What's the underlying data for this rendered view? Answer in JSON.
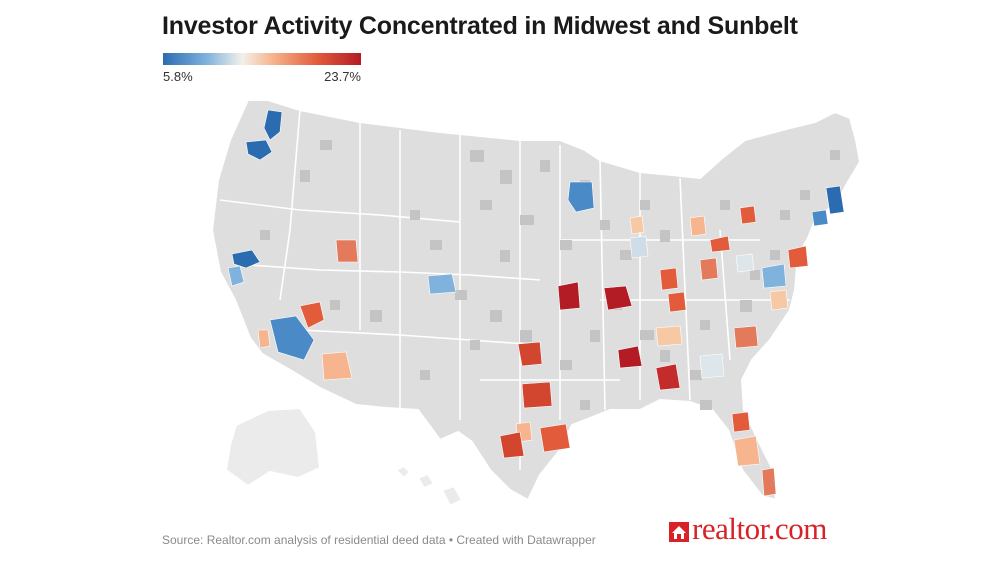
{
  "title": "Investor Activity Concentrated in Midwest and Sunbelt",
  "legend": {
    "min_label": "5.8%",
    "max_label": "23.7%",
    "min_value": 5.8,
    "max_value": 23.7,
    "colors": [
      "#2b6cb0",
      "#7fb2dc",
      "#f3f0ea",
      "#f6b58f",
      "#e25b3b",
      "#b31b25"
    ]
  },
  "map": {
    "region": "Contiguous United States, Alaska and Hawaii (county level)",
    "highlighted_metros": [
      {
        "area": "Seattle, WA",
        "color": "#2b6cb0"
      },
      {
        "area": "Portland, OR",
        "color": "#2b6cb0"
      },
      {
        "area": "San Francisco, CA",
        "color": "#2b6cb0"
      },
      {
        "area": "San Jose, CA",
        "color": "#7fb2dc"
      },
      {
        "area": "Los Angeles / Riverside, CA",
        "color": "#4a8ac6"
      },
      {
        "area": "San Diego, CA",
        "color": "#f6b58f"
      },
      {
        "area": "Las Vegas, NV",
        "color": "#e25b3b"
      },
      {
        "area": "Phoenix, AZ",
        "color": "#f6b58f"
      },
      {
        "area": "Salt Lake City, UT",
        "color": "#e27a5b"
      },
      {
        "area": "Denver, CO",
        "color": "#7fb2dc"
      },
      {
        "area": "Minneapolis, MN",
        "color": "#4a8ac6"
      },
      {
        "area": "Kansas City, MO",
        "color": "#b31b25"
      },
      {
        "area": "St. Louis, MO",
        "color": "#b31b25"
      },
      {
        "area": "Oklahoma City, OK",
        "color": "#d2452f"
      },
      {
        "area": "Dallas, TX",
        "color": "#d2452f"
      },
      {
        "area": "Houston, TX",
        "color": "#e25b3b"
      },
      {
        "area": "San Antonio, TX",
        "color": "#d2452f"
      },
      {
        "area": "Austin, TX",
        "color": "#f6b58f"
      },
      {
        "area": "Memphis, TN",
        "color": "#b31b25"
      },
      {
        "area": "Birmingham, AL",
        "color": "#c42b2b"
      },
      {
        "area": "Nashville, TN",
        "color": "#f6c8a4"
      },
      {
        "area": "Atlanta, GA",
        "color": "#dde6ea"
      },
      {
        "area": "Indianapolis, IN",
        "color": "#e25b3b"
      },
      {
        "area": "Cincinnati, OH",
        "color": "#e25b3b"
      },
      {
        "area": "Columbus, OH",
        "color": "#e27a5b"
      },
      {
        "area": "Detroit, MI",
        "color": "#f6b58f"
      },
      {
        "area": "Cleveland, OH",
        "color": "#e25b3b"
      },
      {
        "area": "Milwaukee, WI",
        "color": "#f6c8a4"
      },
      {
        "area": "Chicago, IL",
        "color": "#cfdde8"
      },
      {
        "area": "Pittsburgh, PA",
        "color": "#dde6ea"
      },
      {
        "area": "Philadelphia, PA",
        "color": "#e25b3b"
      },
      {
        "area": "Baltimore / Washington",
        "color": "#7fb2dc"
      },
      {
        "area": "Richmond, VA",
        "color": "#f6c8a4"
      },
      {
        "area": "Charlotte, NC",
        "color": "#e27a5b"
      },
      {
        "area": "Boston, MA",
        "color": "#2b6cb0"
      },
      {
        "area": "Hartford / Providence",
        "color": "#4a8ac6"
      },
      {
        "area": "Albany / Upstate NY",
        "color": "#e25b3b"
      },
      {
        "area": "Jacksonville, FL",
        "color": "#e25b3b"
      },
      {
        "area": "Orlando / Tampa, FL",
        "color": "#f6b58f"
      },
      {
        "area": "Miami, FL",
        "color": "#e27a5b"
      }
    ]
  },
  "footer": {
    "source": "Source: Realtor.com analysis of residential deed data • Created with Datawrapper"
  },
  "logo": {
    "text": "realtor.com",
    "color": "#d92228"
  }
}
